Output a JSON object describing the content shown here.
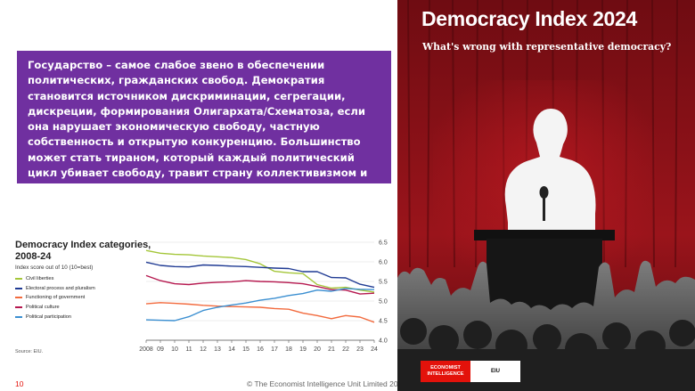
{
  "callout": {
    "text": "Государство – самое слабое звено в обеспечении политических, гражданских свобод. Демократия становится источником дискриминации, сегрегации, дискреции, формирования Олигархата/Схематоза, если она нарушает экономическую свободу, частную собственность и открытую конкуренцию. Большинство может стать тираном, который каждый политический цикл убивает свободу, травит страну коллективизмом и Левиафанством."
  },
  "chart_title": "Democracy Index categories, 2008-24",
  "chart_subtitle": "Index score out of 10 (10=best)",
  "source": "Source: EIU.",
  "page_number": "10",
  "copyright": "© The Economist Intelligence Unit Limited 2025",
  "cover": {
    "title": "Democracy Index 2024",
    "subtitle": "What's wrong with representative democracy?",
    "logo_left": "ECONOMIST INTELLIGENCE",
    "logo_right": "EIU"
  },
  "chart_data": {
    "type": "line",
    "title": "Democracy Index categories, 2008-24",
    "subtitle": "Index score out of 10 (10=best)",
    "x": [
      2008,
      2009,
      2010,
      2011,
      2012,
      2013,
      2014,
      2015,
      2016,
      2017,
      2018,
      2019,
      2020,
      2021,
      2022,
      2023,
      2024
    ],
    "x_tick_labels": [
      "2008",
      "09",
      "10",
      "11",
      "12",
      "13",
      "14",
      "15",
      "16",
      "17",
      "18",
      "19",
      "20",
      "21",
      "22",
      "23",
      "24"
    ],
    "ylim": [
      4.0,
      6.5
    ],
    "y_ticks": [
      "6.5",
      "6.0",
      "5.5",
      "5.0",
      "4.5",
      "4.0"
    ],
    "y_axis_position": "right",
    "legend_position": "left",
    "series": [
      {
        "name": "Civil liberties",
        "color": "#a4c639",
        "values": [
          6.29,
          6.22,
          6.19,
          6.18,
          6.15,
          6.13,
          6.11,
          6.06,
          5.95,
          5.76,
          5.72,
          5.7,
          5.42,
          5.33,
          5.35,
          5.28,
          5.23
        ]
      },
      {
        "name": "Electoral process and pluralism",
        "color": "#1f3a93",
        "values": [
          5.99,
          5.91,
          5.88,
          5.87,
          5.92,
          5.91,
          5.89,
          5.88,
          5.86,
          5.84,
          5.83,
          5.75,
          5.75,
          5.6,
          5.59,
          5.43,
          5.35
        ]
      },
      {
        "name": "Functioning of government",
        "color": "#f26a3d",
        "values": [
          4.93,
          4.96,
          4.94,
          4.92,
          4.89,
          4.87,
          4.86,
          4.85,
          4.84,
          4.81,
          4.79,
          4.69,
          4.63,
          4.55,
          4.63,
          4.59,
          4.46
        ]
      },
      {
        "name": "Political culture",
        "color": "#b5174e",
        "values": [
          5.65,
          5.52,
          5.44,
          5.42,
          5.46,
          5.48,
          5.49,
          5.52,
          5.5,
          5.49,
          5.47,
          5.44,
          5.37,
          5.29,
          5.28,
          5.18,
          5.2
        ]
      },
      {
        "name": "Political participation",
        "color": "#3b8fd1",
        "values": [
          4.52,
          4.51,
          4.5,
          4.6,
          4.76,
          4.84,
          4.9,
          4.95,
          5.02,
          5.07,
          5.14,
          5.19,
          5.28,
          5.25,
          5.32,
          5.3,
          5.29
        ]
      }
    ]
  }
}
